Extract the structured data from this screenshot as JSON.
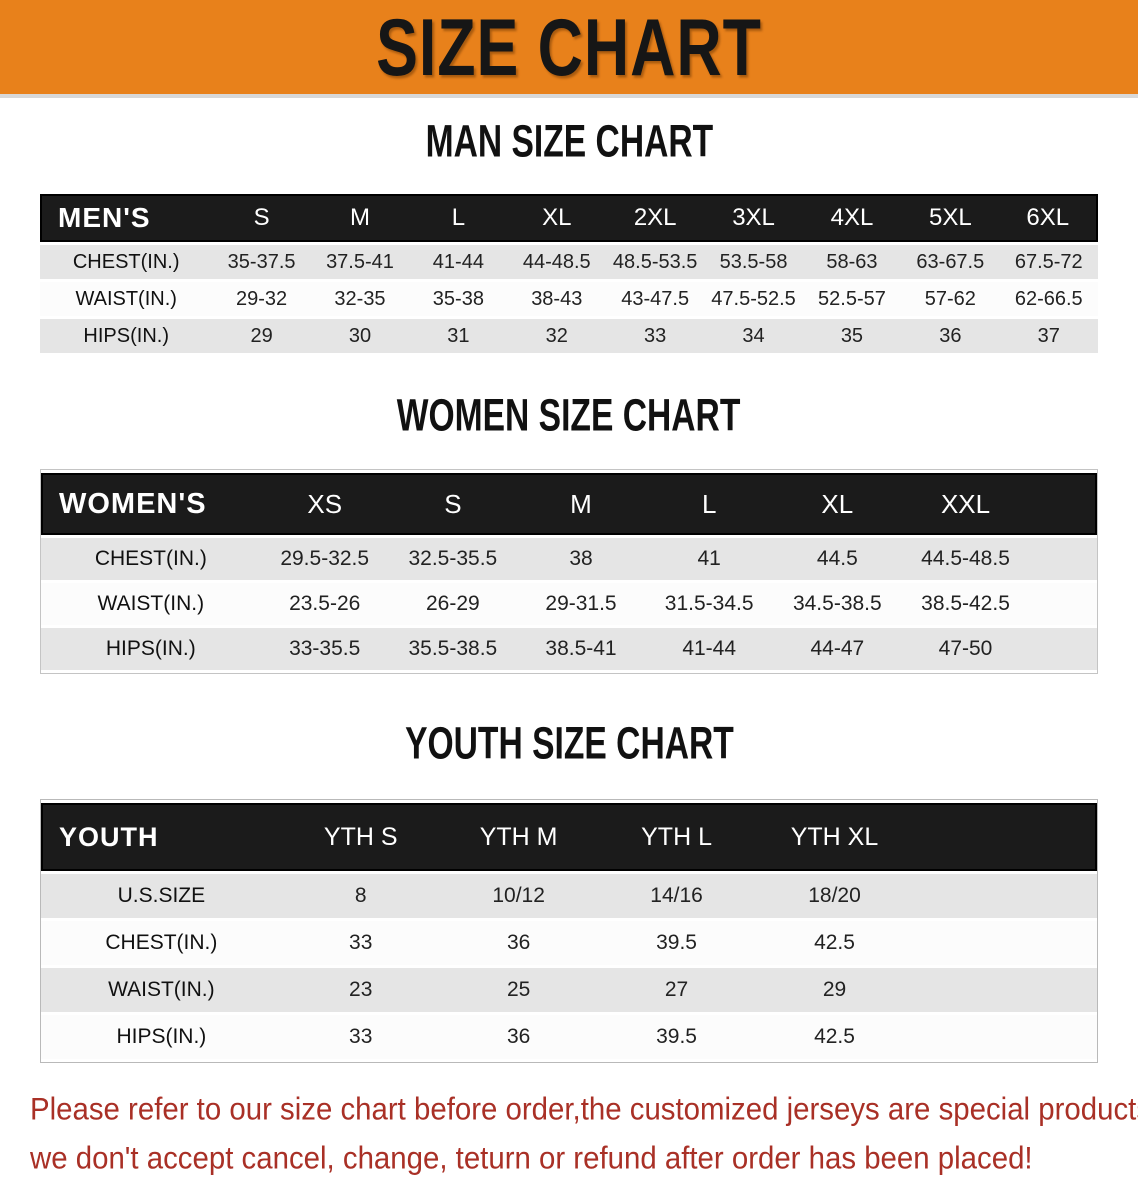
{
  "banner": {
    "title": "SIZE CHART",
    "bg_color": "#E8811B",
    "text_color": "#161616"
  },
  "colors": {
    "table_header_bg": "#1B1B1B",
    "row_gray": "#E5E5E5",
    "row_white": "#FCFCFC",
    "disclaimer_red": "#A93026"
  },
  "sections": [
    {
      "heading": "MAN SIZE CHART",
      "group_label": "MEN'S",
      "columns": [
        "S",
        "M",
        "L",
        "XL",
        "2XL",
        "3XL",
        "4XL",
        "5XL",
        "6XL"
      ],
      "rows": [
        {
          "label": "CHEST(IN.)",
          "values": [
            "35-37.5",
            "37.5-41",
            "41-44",
            "44-48.5",
            "48.5-53.5",
            "53.5-58",
            "58-63",
            "63-67.5",
            "67.5-72"
          ]
        },
        {
          "label": "WAIST(IN.)",
          "values": [
            "29-32",
            "32-35",
            "35-38",
            "38-43",
            "43-47.5",
            "47.5-52.5",
            "52.5-57",
            "57-62",
            "62-66.5"
          ]
        },
        {
          "label": "HIPS(IN.)",
          "values": [
            "29",
            "30",
            "31",
            "32",
            "33",
            "34",
            "35",
            "36",
            "37"
          ]
        }
      ]
    },
    {
      "heading": "WOMEN SIZE CHART",
      "group_label": "WOMEN'S",
      "columns": [
        "XS",
        "S",
        "M",
        "L",
        "XL",
        "XXL"
      ],
      "rows": [
        {
          "label": "CHEST(IN.)",
          "values": [
            "29.5-32.5",
            "32.5-35.5",
            "38",
            "41",
            "44.5",
            "44.5-48.5"
          ]
        },
        {
          "label": "WAIST(IN.)",
          "values": [
            "23.5-26",
            "26-29",
            "29-31.5",
            "31.5-34.5",
            "34.5-38.5",
            "38.5-42.5"
          ]
        },
        {
          "label": "HIPS(IN.)",
          "values": [
            "33-35.5",
            "35.5-38.5",
            "38.5-41",
            "41-44",
            "44-47",
            "47-50"
          ]
        }
      ]
    },
    {
      "heading": "YOUTH SIZE CHART",
      "group_label": "YOUTH",
      "columns": [
        "YTH S",
        "YTH M",
        "YTH L",
        "YTH XL"
      ],
      "rows": [
        {
          "label": "U.S.SIZE",
          "values": [
            "8",
            "10/12",
            "14/16",
            "18/20"
          ]
        },
        {
          "label": "CHEST(IN.)",
          "values": [
            "33",
            "36",
            "39.5",
            "42.5"
          ]
        },
        {
          "label": "WAIST(IN.)",
          "values": [
            "23",
            "25",
            "27",
            "29"
          ]
        },
        {
          "label": "HIPS(IN.)",
          "values": [
            "33",
            "36",
            "39.5",
            "42.5"
          ]
        }
      ]
    }
  ],
  "disclaimer": {
    "line1": "Please refer to our size chart before order,the customized jerseys are special products,",
    "line2": "we don't accept cancel, change, teturn or refund after order has been placed!"
  }
}
